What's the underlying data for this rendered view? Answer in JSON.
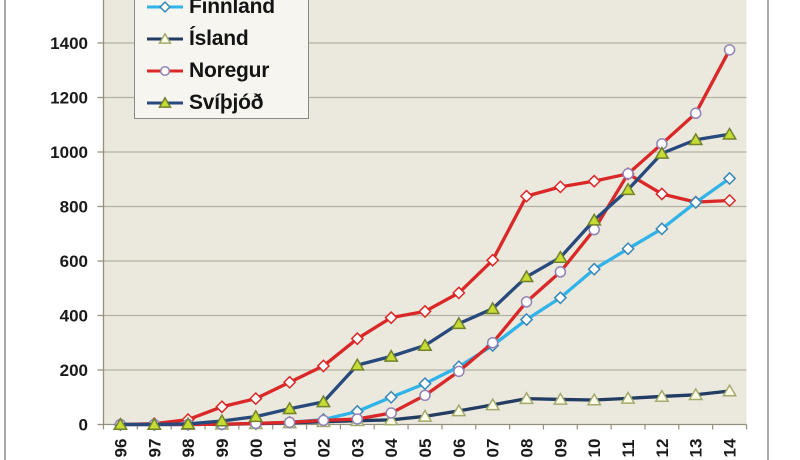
{
  "colors": {
    "page_bg": "#ffffff",
    "plot_bg": "#ebe8dd",
    "gridline": "#b3b0a4",
    "axis": "#94907f",
    "axis_text": "#1a1a1a",
    "legend_bg": "#f6f5ef",
    "legend_border": "#8a8a88",
    "frame_border": "#a8a8a6"
  },
  "legend": {
    "position": "top-left",
    "items": [
      {
        "label": "Finnland"
      },
      {
        "label": "Ísland"
      },
      {
        "label": "Noregur"
      },
      {
        "label": "Svíþjóð"
      }
    ]
  },
  "axes": {
    "y_tick_labels": [
      "0",
      "200",
      "400",
      "600",
      "800",
      "1000",
      "1200",
      "1400"
    ],
    "x_tick_labels": [
      "96",
      "97",
      "98",
      "99",
      "00",
      "01",
      "02",
      "03",
      "04",
      "05",
      "06",
      "07",
      "08",
      "09",
      "10",
      "11",
      "12",
      "13",
      "14"
    ]
  },
  "chart_data": {
    "type": "line",
    "title": "",
    "xlabel": "",
    "ylabel": "",
    "ylim": [
      0,
      1400
    ],
    "y_tick_step": 200,
    "grid": "horizontal",
    "legend_position": "top-left",
    "note": "A fifth red series with diamond markers is plotted; its legend entry is cropped above the top edge of the image. The visible legend's first entry (Finnland) is also partially cropped.",
    "x": [
      "96",
      "97",
      "98",
      "99",
      "00",
      "01",
      "02",
      "03",
      "04",
      "05",
      "06",
      "07",
      "08",
      "09",
      "10",
      "11",
      "12",
      "13",
      "14"
    ],
    "series": [
      {
        "name": "",
        "legend_visible": false,
        "marker": "diamond",
        "color": "#da2727",
        "marker_fill": "#ffffff",
        "marker_stroke": "#da2727",
        "values": [
          0,
          3,
          18,
          65,
          95,
          155,
          215,
          315,
          392,
          415,
          483,
          603,
          838,
          872,
          893,
          920,
          846,
          816,
          822
        ]
      },
      {
        "name": "Finnland",
        "legend_visible": true,
        "marker": "diamond",
        "color": "#2fb3e8",
        "marker_fill": "#ffffff",
        "marker_stroke": "#3987b4",
        "values": [
          0,
          0,
          0,
          1,
          3,
          8,
          18,
          48,
          100,
          150,
          212,
          290,
          385,
          465,
          570,
          645,
          718,
          815,
          903
        ]
      },
      {
        "name": "Ísland",
        "legend_visible": true,
        "marker": "triangle",
        "color": "#223c62",
        "marker_fill": "#fbfbe6",
        "marker_stroke": "#a3aa6e",
        "values": [
          0,
          0,
          0,
          1,
          3,
          6,
          10,
          14,
          17,
          30,
          50,
          72,
          95,
          92,
          90,
          96,
          103,
          109,
          123
        ]
      },
      {
        "name": "Noregur",
        "legend_visible": true,
        "marker": "circle",
        "color": "#da2727",
        "marker_fill": "#ffffff",
        "marker_stroke": "#9183b5",
        "values": [
          0,
          0,
          0,
          1,
          4,
          8,
          15,
          20,
          42,
          107,
          195,
          300,
          450,
          560,
          715,
          920,
          1030,
          1142,
          1375
        ]
      },
      {
        "name": "Svíþjóð",
        "legend_visible": true,
        "marker": "triangle",
        "color": "#27497b",
        "marker_fill": "#c6db33",
        "marker_stroke": "#72822b",
        "values": [
          0,
          0,
          2,
          13,
          29,
          58,
          83,
          218,
          250,
          290,
          370,
          425,
          542,
          613,
          750,
          862,
          995,
          1045,
          1065
        ]
      }
    ]
  }
}
